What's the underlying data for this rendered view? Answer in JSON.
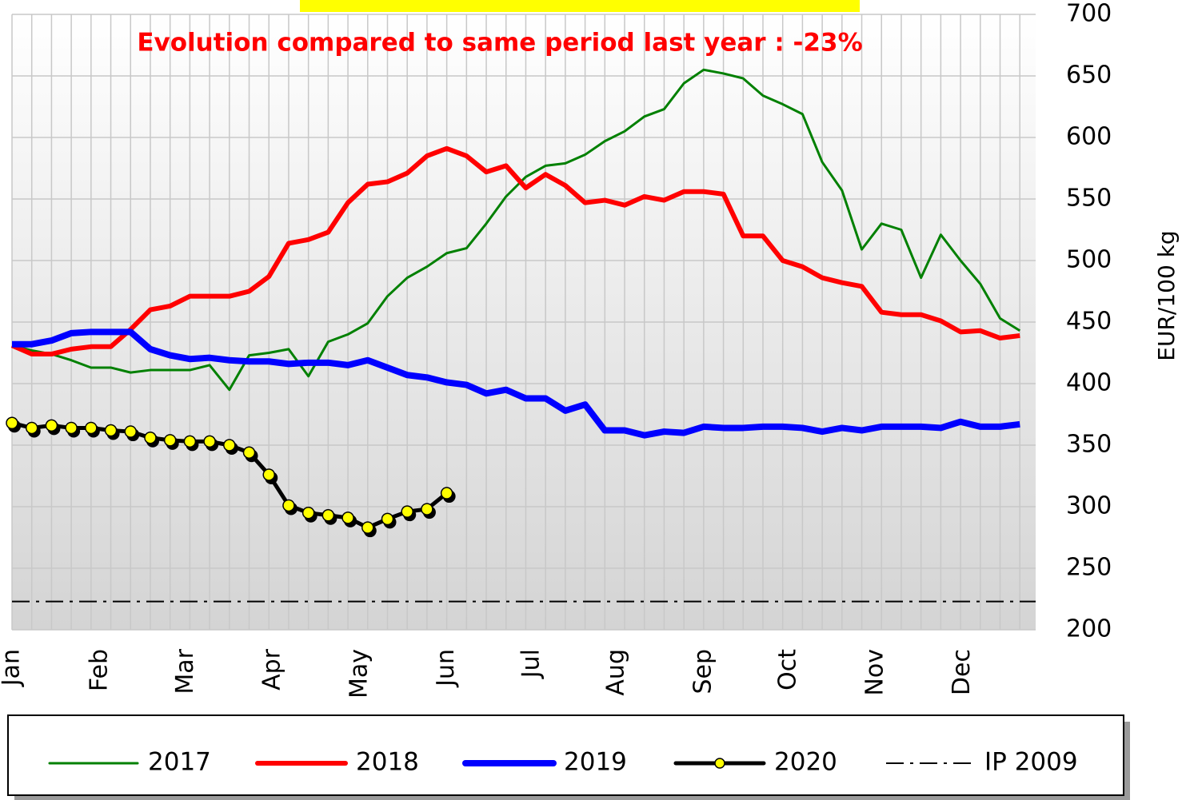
{
  "chart_data": {
    "type": "line",
    "subtitle": "Evolution compared to same period last year : -23%",
    "y_label": "EUR/100 kg",
    "x": [
      1,
      2,
      3,
      4,
      5,
      6,
      7,
      8,
      9,
      10,
      11,
      12,
      13,
      14,
      15,
      16,
      17,
      18,
      19,
      20,
      21,
      22,
      23,
      24,
      25,
      26,
      27,
      28,
      29,
      30,
      31,
      32,
      33,
      34,
      35,
      36,
      37,
      38,
      39,
      40,
      41,
      42,
      43,
      44,
      45,
      46,
      47,
      48,
      49,
      50,
      51,
      52
    ],
    "xlim": [
      1,
      52.8
    ],
    "xticks": [
      {
        "value": 1,
        "label": "Jan"
      },
      {
        "value": 5.45,
        "label": "Feb"
      },
      {
        "value": 9.8,
        "label": "Mar"
      },
      {
        "value": 14.2,
        "label": "Apr"
      },
      {
        "value": 18.6,
        "label": "May"
      },
      {
        "value": 23,
        "label": "Jun"
      },
      {
        "value": 27.3,
        "label": "Jul"
      },
      {
        "value": 31.6,
        "label": "Aug"
      },
      {
        "value": 36,
        "label": "Sep"
      },
      {
        "value": 40.3,
        "label": "Oct"
      },
      {
        "value": 44.7,
        "label": "Nov"
      },
      {
        "value": 49.1,
        "label": "Dec"
      }
    ],
    "ylim": [
      200,
      700
    ],
    "yticks": [
      200,
      250,
      300,
      350,
      400,
      450,
      500,
      550,
      600,
      650,
      700
    ],
    "grid": true,
    "y_axis_side": "right",
    "series": [
      {
        "name": "2017",
        "color": "#008000",
        "width": 3,
        "values": [
          431,
          427,
          424,
          419,
          413,
          413,
          409,
          411,
          411,
          411,
          415,
          395,
          423,
          425,
          428,
          406,
          434,
          440,
          449,
          471,
          486,
          495,
          506,
          510,
          530,
          552,
          568,
          577,
          579,
          586,
          597,
          605,
          617,
          623,
          644,
          655,
          652,
          648,
          634,
          627,
          619,
          580,
          557,
          509,
          530,
          525,
          486,
          521,
          500,
          481,
          453,
          443
        ]
      },
      {
        "name": "2018",
        "color": "#ff0000",
        "width": 6,
        "values": [
          431,
          424,
          424,
          428,
          430,
          430,
          444,
          460,
          463,
          471,
          471,
          471,
          475,
          487,
          514,
          517,
          523,
          547,
          562,
          564,
          571,
          585,
          591,
          585,
          572,
          577,
          559,
          570,
          561,
          547,
          549,
          545,
          552,
          549,
          556,
          556,
          554,
          520,
          520,
          500,
          495,
          486,
          482,
          479,
          458,
          456,
          456,
          451,
          442,
          443,
          437,
          439
        ]
      },
      {
        "name": "2019",
        "color": "#0000ff",
        "width": 8,
        "values": [
          432,
          432,
          435,
          441,
          442,
          442,
          442,
          428,
          423,
          420,
          421,
          419,
          418,
          418,
          416,
          417,
          417,
          415,
          419,
          413,
          407,
          405,
          401,
          399,
          392,
          395,
          388,
          388,
          378,
          383,
          362,
          362,
          358,
          361,
          360,
          365,
          364,
          364,
          365,
          365,
          364,
          361,
          364,
          362,
          365,
          365,
          365,
          364,
          369,
          365,
          365,
          367
        ]
      },
      {
        "name": "2020",
        "color": "#000000",
        "marker_color": "#ffff00",
        "width": 5,
        "marker": true,
        "values": [
          368,
          364,
          366,
          364,
          364,
          362,
          361,
          356,
          354,
          353,
          353,
          350,
          344,
          326,
          301,
          295,
          293,
          291,
          283,
          290,
          296,
          298,
          311,
          null,
          null,
          null,
          null,
          null,
          null,
          null,
          null,
          null,
          null,
          null,
          null,
          null,
          null,
          null,
          null,
          null,
          null,
          null,
          null,
          null,
          null,
          null,
          null,
          null,
          null,
          null,
          null,
          null
        ]
      }
    ],
    "hlines": [
      {
        "name": "IP 2009",
        "value": 223,
        "color": "#000000",
        "dash": "dash-dot"
      }
    ]
  }
}
